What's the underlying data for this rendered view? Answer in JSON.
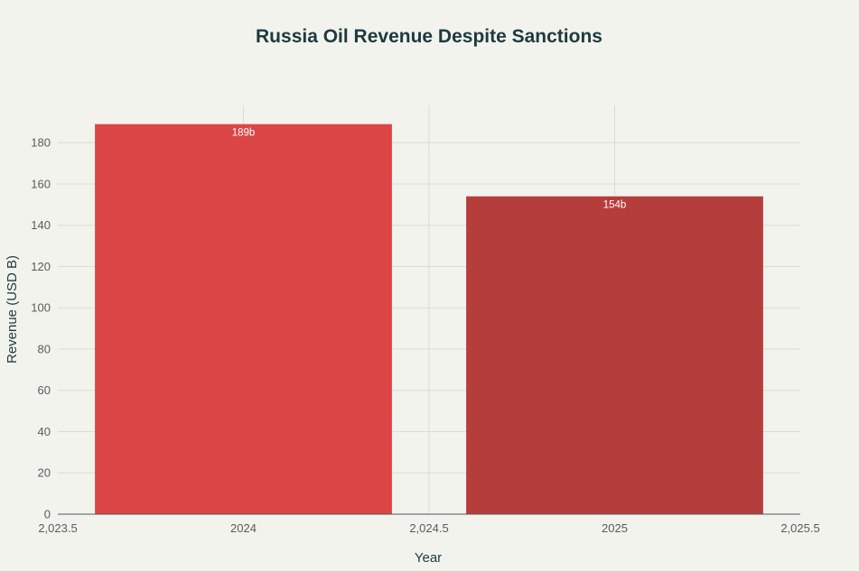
{
  "chart_data": {
    "type": "bar",
    "title": "Russia Oil Revenue Despite Sanctions",
    "xlabel": "Year",
    "ylabel": "Revenue (USD B)",
    "x": [
      2024,
      2025
    ],
    "values": [
      189,
      154
    ],
    "data_labels": [
      "189b",
      "154b"
    ],
    "bar_colors": [
      "#dc4545",
      "#b53e3c"
    ],
    "xlim": [
      2023.5,
      2025.5
    ],
    "ylim": [
      0,
      198
    ],
    "x_ticks": [
      2023.5,
      2024,
      2024.5,
      2025,
      2025.5
    ],
    "x_tick_labels": [
      "2,023.5",
      "2024",
      "2,024.5",
      "2025",
      "2,025.5"
    ],
    "y_ticks": [
      0,
      20,
      40,
      60,
      80,
      100,
      120,
      140,
      160,
      180
    ],
    "y_tick_labels": [
      "0",
      "20",
      "40",
      "60",
      "80",
      "100",
      "120",
      "140",
      "160",
      "180"
    ],
    "grid": true,
    "legend": "none"
  }
}
